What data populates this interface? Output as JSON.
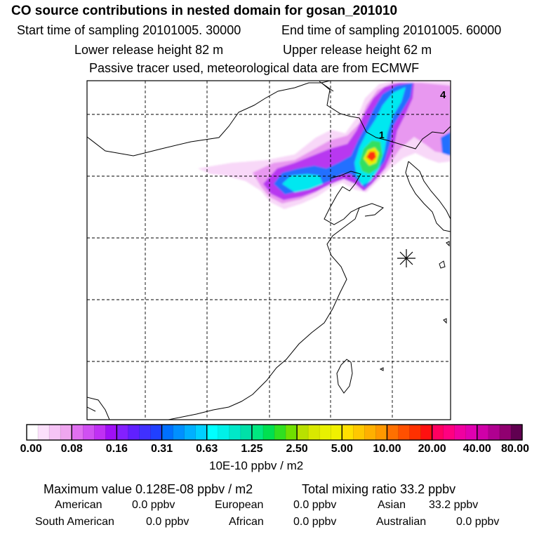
{
  "header": {
    "title": "CO  source contributions in nested domain for gosan_201010",
    "start_label": "Start time of sampling 20101005. 30000",
    "end_label": "End time of sampling 20101005. 60000",
    "lower_label": "Lower release height   82 m",
    "upper_label": "Upper release height   62 m",
    "tracer_label": "Passive tracer used, meteorological data are from ECMWF"
  },
  "map": {
    "contour_labels": [
      "4",
      "1"
    ]
  },
  "chart_data": {
    "type": "heatmap",
    "title": "CO  source contributions in nested domain for gosan_201010",
    "colorbar": {
      "tick_labels": [
        "0.00",
        "0.08",
        "0.16",
        "0.31",
        "0.63",
        "1.25",
        "2.50",
        "5.00",
        "10.00",
        "20.00",
        "40.00",
        "80.00"
      ],
      "tick_values": [
        0.0,
        0.08,
        0.16,
        0.31,
        0.63,
        1.25,
        2.5,
        5.0,
        10.0,
        20.0,
        40.0,
        80.0
      ],
      "unit": "10E-10 ppbv / m2",
      "colors": [
        "#ffffff",
        "#fbe0fb",
        "#f6c4f6",
        "#efa6ef",
        "#e070f0",
        "#d050f2",
        "#c030f4",
        "#a010f6",
        "#8420ff",
        "#6020ff",
        "#4030ff",
        "#2040ff",
        "#0070ff",
        "#0090ff",
        "#00b0ff",
        "#00d0ff",
        "#00ffff",
        "#00f0e8",
        "#00e8c8",
        "#00e0a8",
        "#00e880",
        "#00e050",
        "#30e020",
        "#70e000",
        "#b8e000",
        "#d8e800",
        "#e8f000",
        "#f0f000",
        "#ffe000",
        "#ffc800",
        "#ffb000",
        "#ff9800",
        "#ff7000",
        "#ff5000",
        "#ff3000",
        "#ff1010",
        "#ff0060",
        "#ff0080",
        "#f000a0",
        "#e000b0",
        "#d000a8",
        "#b00090",
        "#900070",
        "#600050"
      ]
    },
    "maximum_value": "Maximum value  0.128E-08 ppbv / m2",
    "total_mixing_ratio": "Total mixing ratio       33.2 ppbv",
    "contributions": [
      {
        "name": "American",
        "value": "0.0 ppbv"
      },
      {
        "name": "European",
        "value": "0.0 ppbv"
      },
      {
        "name": "Asian",
        "value": "33.2 ppbv"
      },
      {
        "name": "South American",
        "value": "0.0 ppbv"
      },
      {
        "name": "African",
        "value": "0.0 ppbv"
      },
      {
        "name": "Australian",
        "value": "0.0 ppbv"
      }
    ]
  }
}
